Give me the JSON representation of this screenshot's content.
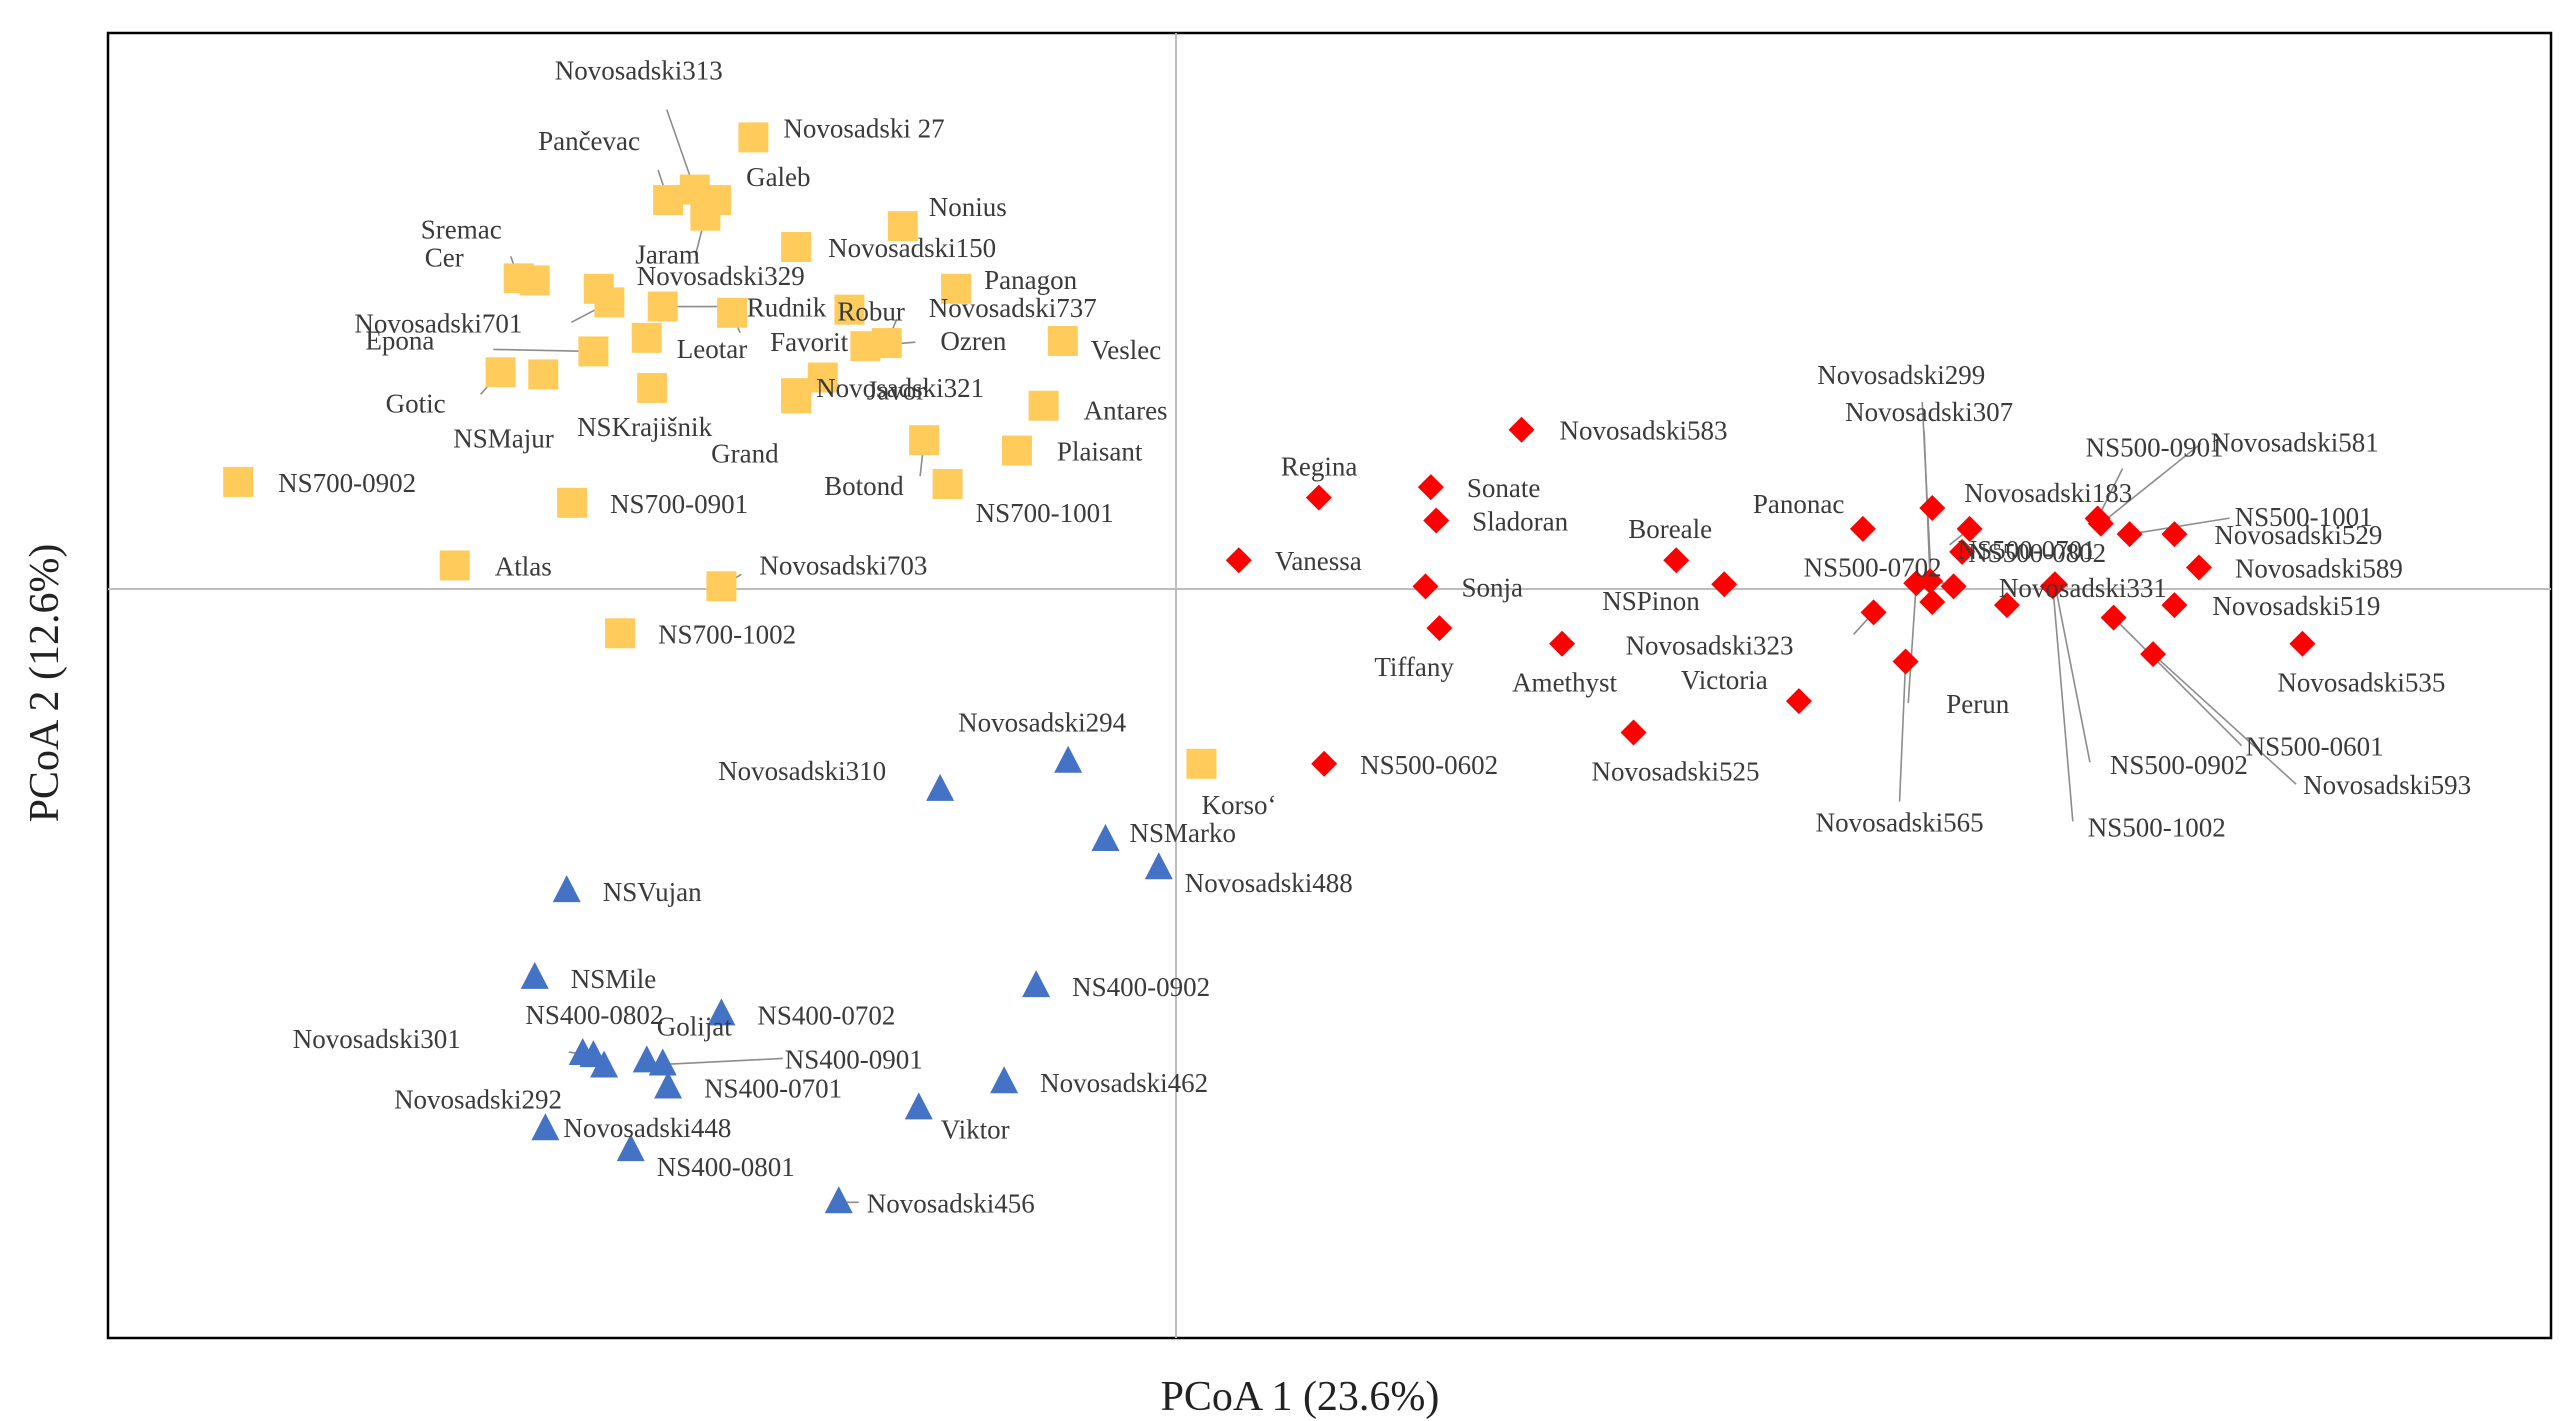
{
  "chart_data": {
    "type": "scatter",
    "title": "",
    "xlabel": "PCoA 1 (23.6%)",
    "ylabel": "PCoA 2 (12.6%)",
    "xlim": [
      -1.0,
      1.29
    ],
    "ylim": [
      -0.72,
      0.53
    ],
    "grid": false,
    "legend": "none",
    "series": [
      {
        "name": "group-yellow",
        "marker": "square",
        "color": "#FFCC5C",
        "points": [
          {
            "label": "Novosadski313",
            "x": -0.45,
            "y": 0.38
          },
          {
            "label": "Novosadski 27",
            "x": -0.395,
            "y": 0.43
          },
          {
            "label": "Pančevac",
            "x": -0.475,
            "y": 0.37
          },
          {
            "label": "Galeb",
            "x": -0.43,
            "y": 0.37
          },
          {
            "label": "Jaram",
            "x": -0.44,
            "y": 0.355
          },
          {
            "label": "Nonius",
            "x": -0.255,
            "y": 0.345
          },
          {
            "label": "Novosadski150",
            "x": -0.355,
            "y": 0.325
          },
          {
            "label": "Sremac",
            "x": -0.615,
            "y": 0.295
          },
          {
            "label": "Cer",
            "x": -0.6,
            "y": 0.293
          },
          {
            "label": "Novosadski329",
            "x": -0.54,
            "y": 0.285
          },
          {
            "label": "Panagon",
            "x": -0.205,
            "y": 0.285
          },
          {
            "label": "Robur",
            "x": -0.305,
            "y": 0.265
          },
          {
            "label": "Novosadski701",
            "x": -0.53,
            "y": 0.272
          },
          {
            "label": "Rudnik",
            "x": -0.48,
            "y": 0.268
          },
          {
            "label": "Favorit",
            "x": -0.415,
            "y": 0.262
          },
          {
            "label": "Novosadski737",
            "x": -0.27,
            "y": 0.233
          },
          {
            "label": "Leotar",
            "x": -0.495,
            "y": 0.238
          },
          {
            "label": "Epona",
            "x": -0.545,
            "y": 0.225
          },
          {
            "label": "Veslec",
            "x": -0.105,
            "y": 0.235
          },
          {
            "label": "Ozren",
            "x": -0.29,
            "y": 0.23
          },
          {
            "label": "Gotic",
            "x": -0.632,
            "y": 0.205
          },
          {
            "label": "NSMajur",
            "x": -0.592,
            "y": 0.203
          },
          {
            "label": "Javor",
            "x": -0.33,
            "y": 0.2
          },
          {
            "label": "NSKrajišnik",
            "x": -0.49,
            "y": 0.19
          },
          {
            "label": "Novosadski321",
            "x": -0.355,
            "y": 0.185
          },
          {
            "label": "Antares",
            "x": -0.123,
            "y": 0.173
          },
          {
            "label": "Grand",
            "x": -0.355,
            "y": 0.18
          },
          {
            "label": "Plaisant",
            "x": -0.148,
            "y": 0.13
          },
          {
            "label": "Botond",
            "x": -0.235,
            "y": 0.14
          },
          {
            "label": "NS700-0902",
            "x": -0.878,
            "y": 0.1
          },
          {
            "label": "NS700-1001",
            "x": -0.213,
            "y": 0.098
          },
          {
            "label": "NS700-0901",
            "x": -0.565,
            "y": 0.08
          },
          {
            "label": "Atlas",
            "x": -0.675,
            "y": 0.02
          },
          {
            "label": "Novosadski703",
            "x": -0.425,
            "y": 0.0
          },
          {
            "label": "NS700-1002",
            "x": -0.52,
            "y": -0.045
          },
          {
            "label": "Korso‘",
            "x": 0.025,
            "y": -0.17
          }
        ]
      },
      {
        "name": "group-red",
        "marker": "diamond",
        "color": "#FF0000",
        "points": [
          {
            "label": "Novosadski583",
            "x": 0.325,
            "y": 0.15
          },
          {
            "label": "Regina",
            "x": 0.135,
            "y": 0.085
          },
          {
            "label": "Sonate",
            "x": 0.24,
            "y": 0.095
          },
          {
            "label": "Sladoran",
            "x": 0.245,
            "y": 0.063
          },
          {
            "label": "Vanessa",
            "x": 0.06,
            "y": 0.025
          },
          {
            "label": "Sonja",
            "x": 0.235,
            "y": 0.0
          },
          {
            "label": "Tiffany",
            "x": 0.248,
            "y": -0.04
          },
          {
            "label": "Amethyst",
            "x": 0.363,
            "y": -0.055
          },
          {
            "label": "Boreale",
            "x": 0.47,
            "y": 0.025
          },
          {
            "label": "NSPinon",
            "x": 0.515,
            "y": 0.002
          },
          {
            "label": "Victoria",
            "x": 0.585,
            "y": -0.11
          },
          {
            "label": "Novosadski525",
            "x": 0.43,
            "y": -0.14
          },
          {
            "label": "NS500-0602",
            "x": 0.14,
            "y": -0.17
          },
          {
            "label": "Panonac",
            "x": 0.645,
            "y": 0.055
          },
          {
            "label": "Novosadski299",
            "x": 0.71,
            "y": -0.015
          },
          {
            "label": "Novosadski307",
            "x": 0.708,
            "y": 0.005
          },
          {
            "label": "Novosadski183",
            "x": 0.71,
            "y": 0.075
          },
          {
            "label": "NS500-0702",
            "x": 0.73,
            "y": 0.0
          },
          {
            "label": "Novosadski323",
            "x": 0.655,
            "y": -0.025
          },
          {
            "label": "Novosadski565",
            "x": 0.685,
            "y": -0.072
          },
          {
            "label": "NS500-0701",
            "x": 0.745,
            "y": 0.055
          },
          {
            "label": "Perun",
            "x": 0.695,
            "y": 0.003
          },
          {
            "label": "NS500-0802",
            "x": 0.738,
            "y": 0.033
          },
          {
            "label": "Novosadski331",
            "x": 0.78,
            "y": -0.018
          },
          {
            "label": "NS500-0901",
            "x": 0.865,
            "y": 0.065
          },
          {
            "label": "NS500-0902",
            "x": 0.825,
            "y": 0.002
          },
          {
            "label": "NS500-1002",
            "x": 0.823,
            "y": 0.0
          },
          {
            "label": "Novosadski581",
            "x": 0.868,
            "y": 0.06
          },
          {
            "label": "NS500-1001",
            "x": 0.895,
            "y": 0.05
          },
          {
            "label": "Novosadski529",
            "x": 0.937,
            "y": 0.05
          },
          {
            "label": "Novosadski589",
            "x": 0.96,
            "y": 0.018
          },
          {
            "label": "Novosadski519",
            "x": 0.937,
            "y": -0.018
          },
          {
            "label": "NS500-0601",
            "x": 0.88,
            "y": -0.03
          },
          {
            "label": "Novosadski593",
            "x": 0.917,
            "y": -0.065
          },
          {
            "label": "Novosadski535",
            "x": 1.057,
            "y": -0.055
          }
        ]
      },
      {
        "name": "group-blue",
        "marker": "triangle",
        "color": "#4472C4",
        "points": [
          {
            "label": "Novosadski294",
            "x": -0.1,
            "y": -0.168
          },
          {
            "label": "Novosadski310",
            "x": -0.22,
            "y": -0.195
          },
          {
            "label": "NSMarko",
            "x": -0.065,
            "y": -0.243
          },
          {
            "label": "Novosadski488",
            "x": -0.015,
            "y": -0.27
          },
          {
            "label": "NSVujan",
            "x": -0.57,
            "y": -0.292
          },
          {
            "label": "NSMile",
            "x": -0.6,
            "y": -0.375
          },
          {
            "label": "NS400-0902",
            "x": -0.13,
            "y": -0.383
          },
          {
            "label": "NS400-0802",
            "x": -0.545,
            "y": -0.45
          },
          {
            "label": "NS400-0702",
            "x": -0.425,
            "y": -0.41
          },
          {
            "label": "Novosadski301",
            "x": -0.555,
            "y": -0.448
          },
          {
            "label": "Golijat",
            "x": -0.495,
            "y": -0.455
          },
          {
            "label": "NS400-0901",
            "x": -0.48,
            "y": -0.458
          },
          {
            "label": "Novosadski292",
            "x": -0.535,
            "y": -0.46
          },
          {
            "label": "NS400-0701",
            "x": -0.475,
            "y": -0.48
          },
          {
            "label": "Novosadski462",
            "x": -0.16,
            "y": -0.475
          },
          {
            "label": "Viktor",
            "x": -0.24,
            "y": -0.5
          },
          {
            "label": "Novosadski448",
            "x": -0.59,
            "y": -0.52
          },
          {
            "label": "NS400-0801",
            "x": -0.51,
            "y": -0.54
          },
          {
            "label": "Novosadski456",
            "x": -0.315,
            "y": -0.59
          }
        ]
      }
    ]
  }
}
